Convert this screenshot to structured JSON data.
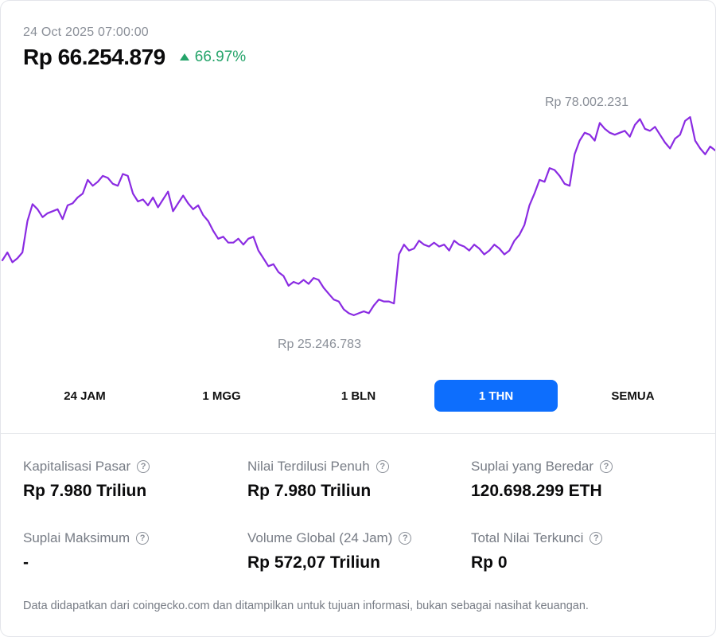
{
  "header": {
    "timestamp": "24 Oct 2025 07:00:00",
    "price": "Rp 66.254.879",
    "change": "66.97%",
    "change_color": "#25a46a"
  },
  "chart_data": {
    "type": "line",
    "line_color": "#8a2be2",
    "high_label": "Rp 78.002.231",
    "low_label": "Rp 25.246.783",
    "ylim": [
      25246783,
      78002231
    ],
    "series": [
      {
        "values": [
          41.5,
          43.5,
          41.0,
          42.0,
          43.5,
          51.5,
          55.8,
          54.5,
          52.5,
          53.5,
          54.0,
          54.5,
          52.0,
          55.5,
          56.0,
          57.5,
          58.5,
          62.0,
          60.5,
          61.5,
          63.0,
          62.5,
          61.0,
          60.5,
          63.5,
          63.0,
          58.5,
          56.5,
          57.0,
          55.5,
          57.5,
          55.0,
          57.0,
          59.0,
          54.0,
          56.0,
          58.0,
          56.0,
          54.5,
          55.5,
          53.0,
          51.5,
          49.0,
          47.0,
          47.5,
          46.0,
          46.0,
          47.0,
          45.5,
          47.0,
          47.5,
          44.0,
          42.0,
          40.0,
          40.5,
          38.5,
          37.5,
          35.0,
          36.0,
          35.5,
          36.5,
          35.5,
          37.0,
          36.5,
          34.5,
          33.0,
          31.5,
          31.0,
          29.0,
          28.0,
          27.5,
          28.0,
          28.5,
          28.0,
          30.0,
          31.5,
          31.0,
          31.0,
          30.5,
          43.0,
          45.5,
          44.0,
          44.5,
          46.5,
          45.5,
          45.0,
          46.0,
          45.0,
          45.5,
          44.0,
          46.5,
          45.5,
          45.0,
          44.0,
          45.5,
          44.5,
          43.0,
          44.0,
          45.5,
          44.5,
          43.0,
          44.0,
          46.5,
          48.0,
          50.5,
          55.5,
          58.5,
          62.0,
          61.5,
          65.0,
          64.5,
          63.0,
          61.0,
          60.5,
          68.5,
          72.0,
          74.0,
          73.5,
          72.0,
          76.5,
          75.0,
          74.0,
          73.5,
          74.0,
          74.5,
          73.0,
          76.0,
          77.5,
          75.0,
          74.5,
          75.5,
          73.5,
          71.5,
          70.0,
          72.5,
          73.5,
          77.0,
          78.0,
          72.0,
          70.0,
          68.5,
          70.5,
          69.5
        ]
      }
    ]
  },
  "ranges": {
    "items": [
      "24 JAM",
      "1 MGG",
      "1 BLN",
      "1 THN",
      "SEMUA"
    ],
    "active_index": 3,
    "active_color": "#0d6efd"
  },
  "stats": [
    {
      "label": "Kapitalisasi Pasar",
      "value": "Rp 7.980 Triliun"
    },
    {
      "label": "Nilai Terdilusi Penuh",
      "value": "Rp 7.980 Triliun"
    },
    {
      "label": "Suplai yang Beredar",
      "value": "120.698.299 ETH"
    },
    {
      "label": "Suplai Maksimum",
      "value": "-"
    },
    {
      "label": "Volume Global (24 Jam)",
      "value": "Rp 572,07 Triliun"
    },
    {
      "label": "Total Nilai Terkunci",
      "value": "Rp 0"
    }
  ],
  "help_icon": "question-circle-icon",
  "footer": "Data didapatkan dari coingecko.com dan ditampilkan untuk tujuan informasi, bukan sebagai nasihat keuangan."
}
